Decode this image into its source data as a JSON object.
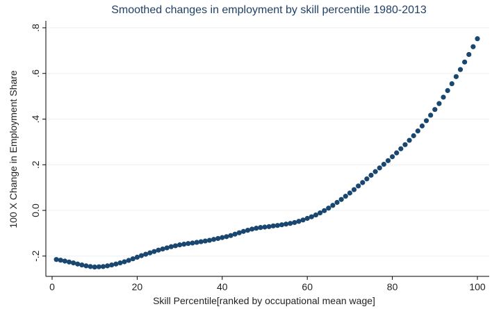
{
  "chart_data": {
    "type": "scatter",
    "title": "Smoothed changes in employment by skill percentile 1980-2013",
    "xlabel": "Skill Percentile[ranked by occupational mean wage]",
    "ylabel": "100 X Change in Employment Share",
    "xlim": [
      0,
      100
    ],
    "ylim": [
      -0.22,
      0.8
    ],
    "xticks": [
      0,
      20,
      40,
      60,
      80,
      100
    ],
    "xtick_labels": [
      "0",
      "20",
      "40",
      "60",
      "80",
      "100"
    ],
    "yticks": [
      -0.2,
      0,
      0.2,
      0.4,
      0.6,
      0.8
    ],
    "ytick_labels": [
      "-.2",
      "0.0",
      ".2",
      ".4",
      ".6",
      ".8"
    ],
    "grid": true,
    "colors": {
      "marker": "#1a476f",
      "grid": "#eaf2f3",
      "axis": "#000000",
      "title": "#1f3f66"
    },
    "series": [
      {
        "x": [
          1,
          2,
          3,
          4,
          5,
          6,
          7,
          8,
          9,
          10,
          11,
          12,
          13,
          14,
          15,
          16,
          17,
          18,
          19,
          20,
          21,
          22,
          23,
          24,
          25,
          26,
          27,
          28,
          29,
          30,
          31,
          32,
          33,
          34,
          35,
          36,
          37,
          38,
          39,
          40,
          41,
          42,
          43,
          44,
          45,
          46,
          47,
          48,
          49,
          50,
          51,
          52,
          53,
          54,
          55,
          56,
          57,
          58,
          59,
          60,
          61,
          62,
          63,
          64,
          65,
          66,
          67,
          68,
          69,
          70,
          71,
          72,
          73,
          74,
          75,
          76,
          77,
          78,
          79,
          80,
          81,
          82,
          83,
          84,
          85,
          86,
          87,
          88,
          89,
          90,
          91,
          92,
          93,
          94,
          95,
          96,
          97,
          98,
          99,
          100
        ],
        "y": [
          -0.215,
          -0.218,
          -0.222,
          -0.226,
          -0.23,
          -0.235,
          -0.239,
          -0.243,
          -0.246,
          -0.248,
          -0.247,
          -0.246,
          -0.243,
          -0.239,
          -0.235,
          -0.23,
          -0.225,
          -0.219,
          -0.212,
          -0.205,
          -0.198,
          -0.192,
          -0.186,
          -0.18,
          -0.174,
          -0.169,
          -0.164,
          -0.159,
          -0.155,
          -0.151,
          -0.148,
          -0.145,
          -0.143,
          -0.14,
          -0.137,
          -0.134,
          -0.131,
          -0.127,
          -0.123,
          -0.119,
          -0.115,
          -0.11,
          -0.104,
          -0.098,
          -0.092,
          -0.087,
          -0.082,
          -0.078,
          -0.075,
          -0.073,
          -0.071,
          -0.068,
          -0.066,
          -0.063,
          -0.06,
          -0.057,
          -0.053,
          -0.048,
          -0.042,
          -0.035,
          -0.028,
          -0.02,
          -0.011,
          -0.001,
          0.01,
          0.022,
          0.035,
          0.048,
          0.062,
          0.076,
          0.091,
          0.107,
          0.122,
          0.138,
          0.154,
          0.17,
          0.186,
          0.202,
          0.218,
          0.235,
          0.252,
          0.27,
          0.288,
          0.307,
          0.327,
          0.348,
          0.37,
          0.393,
          0.417,
          0.442,
          0.468,
          0.496,
          0.525,
          0.555,
          0.586,
          0.617,
          0.65,
          0.683,
          0.717,
          0.752
        ]
      }
    ]
  }
}
